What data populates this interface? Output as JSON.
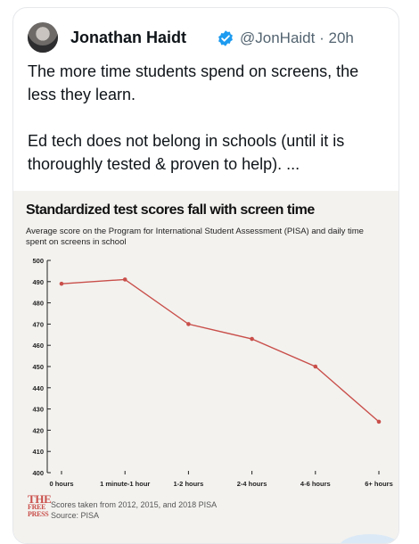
{
  "tweet": {
    "author_name": "Jonathan Haidt",
    "handle": "@JonHaidt",
    "separator": "·",
    "time": "20h",
    "paragraphs": [
      "The more time students spend on screens, the less they learn.",
      "Ed tech does not belong in schools (until it is thoroughly tested & proven to help). ..."
    ],
    "icons": {
      "avatar": "avatar",
      "verified": "verified-badge-icon"
    },
    "colors": {
      "verified": "#1d9bf0",
      "text": "#0f1419",
      "muted": "#536471"
    }
  },
  "chart_data": {
    "type": "line",
    "title": "Standardized test scores fall with screen time",
    "subtitle": "Average score on the Program for International Student Assessment (PISA) and daily time spent on screens in school",
    "categories": [
      "0 hours",
      "1 minute-1 hour",
      "1-2 hours",
      "2-4 hours",
      "4-6 hours",
      "6+ hours"
    ],
    "values": [
      489,
      491,
      470,
      463,
      450,
      424
    ],
    "ylim": [
      400,
      500
    ],
    "yticks": [
      400,
      410,
      420,
      430,
      440,
      450,
      460,
      470,
      480,
      490,
      500
    ],
    "grid": false,
    "line_color": "#c94f4a",
    "source_note": "Scores taken from 2012, 2015, and 2018 PISA",
    "source": "Source: PISA",
    "publisher_logo": [
      "THE",
      "FREE",
      "PRESS"
    ]
  }
}
